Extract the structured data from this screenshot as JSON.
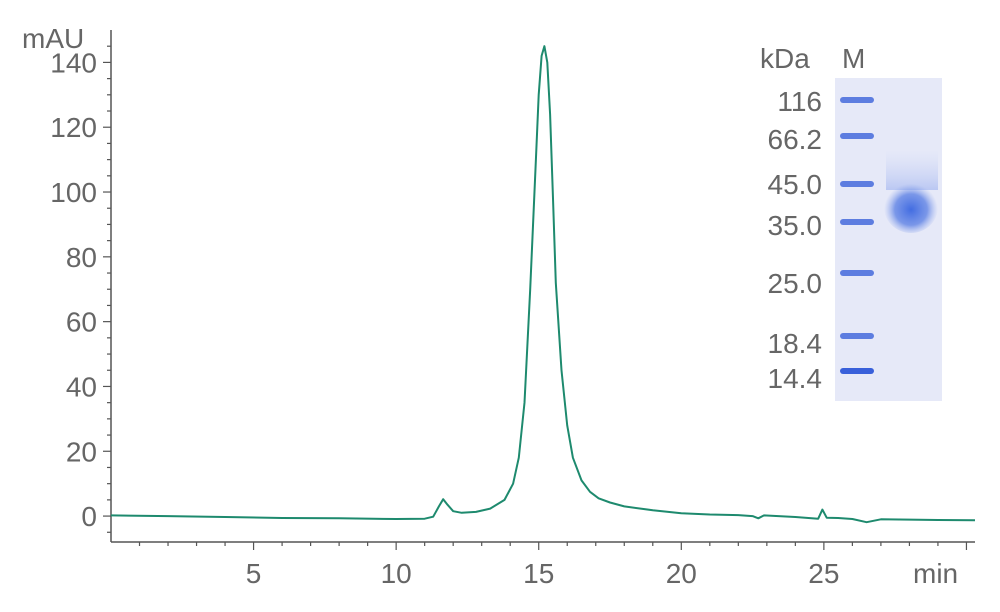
{
  "chart_data": {
    "type": "line",
    "ylabel": "mAU",
    "xlabel": "min",
    "xlim": [
      0,
      30.3
    ],
    "ylim": [
      -8,
      150
    ],
    "x_ticks": [
      5,
      10,
      15,
      20,
      25
    ],
    "y_ticks": [
      0,
      20,
      40,
      60,
      80,
      100,
      120,
      140
    ],
    "grid": false,
    "series": [
      {
        "color": "#1e8a6e",
        "x": [
          0,
          2,
          4,
          6,
          8,
          10,
          11,
          11.3,
          11.5,
          11.65,
          11.8,
          12.0,
          12.3,
          12.8,
          13.3,
          13.8,
          14.1,
          14.3,
          14.5,
          14.7,
          14.9,
          15.0,
          15.1,
          15.2,
          15.3,
          15.4,
          15.5,
          15.6,
          15.8,
          16.0,
          16.2,
          16.5,
          16.8,
          17.1,
          17.5,
          18,
          19,
          20,
          21,
          22,
          22.5,
          22.7,
          22.9,
          24,
          24.8,
          24.95,
          25.1,
          25.5,
          26,
          26.5,
          27,
          28,
          29,
          30.3
        ],
        "y": [
          0.2,
          0,
          -0.3,
          -0.6,
          -0.7,
          -0.9,
          -0.8,
          -0.2,
          3.0,
          5.2,
          3.5,
          1.5,
          1.0,
          1.3,
          2.3,
          5.0,
          10,
          18,
          35,
          70,
          110,
          130,
          142,
          145,
          140,
          124,
          98,
          72,
          45,
          28,
          18,
          11,
          7.5,
          5.5,
          4.2,
          3.0,
          1.8,
          0.9,
          0.5,
          0.3,
          0,
          -0.7,
          0.2,
          -0.3,
          -0.8,
          2.0,
          -0.5,
          -0.6,
          -0.9,
          -1.9,
          -1.0,
          -1.1,
          -1.2,
          -1.3
        ]
      }
    ]
  },
  "gel": {
    "unit_label": "kDa",
    "lane_label": "M",
    "markers": [
      "116",
      "66.2",
      "45.0",
      "35.0",
      "25.0",
      "18.4",
      "14.4"
    ],
    "colors": {
      "background": "#e6e9f8",
      "band": "#2f58d8"
    }
  }
}
